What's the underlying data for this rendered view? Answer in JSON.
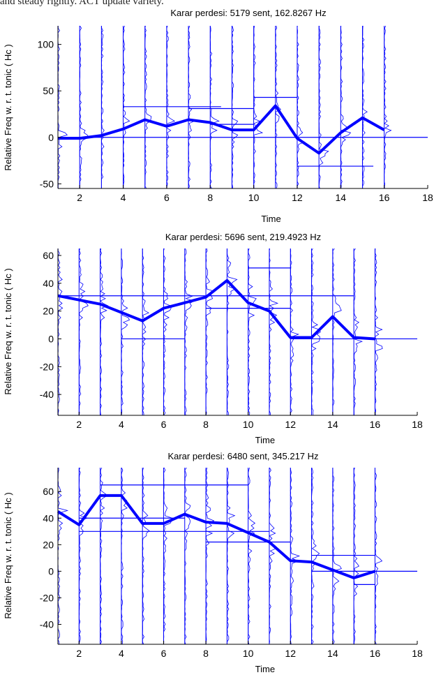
{
  "page": {
    "top_caption": "and steady rightly. ACT update variety."
  },
  "chart_data": [
    {
      "type": "line",
      "title": "Karar perdesi: 5179 sent, 162.8267 Hz",
      "xlabel": "Time",
      "ylabel": "Relative Freq w. r. t. tonic ( Hc )",
      "xlim": [
        1,
        18
      ],
      "ylim": [
        -55,
        120
      ],
      "xticks": [
        2,
        4,
        6,
        8,
        10,
        12,
        14,
        16,
        18
      ],
      "yticks": [
        -50,
        0,
        50,
        100
      ],
      "grid": false,
      "colors": {
        "line": "#0000ff",
        "axis": "#000000"
      },
      "frames": [
        1,
        2,
        3,
        4,
        5,
        6,
        7,
        8,
        9,
        10,
        11,
        12,
        13,
        14,
        15,
        16
      ],
      "series": [
        {
          "x": [
            1,
            2,
            3,
            4,
            5,
            6,
            7,
            8,
            9,
            10,
            11,
            12,
            13,
            14,
            15,
            16
          ],
          "values": [
            -1,
            -1,
            2,
            9,
            19,
            12,
            19,
            16,
            8,
            8,
            34,
            -1,
            -17,
            5,
            21,
            8
          ]
        }
      ],
      "peak_lines": [
        {
          "y": 0,
          "from": 1,
          "to": 18
        },
        {
          "y": 43,
          "from": 10,
          "to": 12
        },
        {
          "y": 31,
          "from": 7,
          "to": 10
        },
        {
          "y": 33,
          "from": 4,
          "to": 8.5
        },
        {
          "y": -31,
          "from": 12,
          "to": 15.5
        },
        {
          "y": 14,
          "from": 8,
          "to": 10
        }
      ]
    },
    {
      "type": "line",
      "title": "Karar perdesi: 5696 sent, 219.4923 Hz",
      "xlabel": "Time",
      "ylabel": "Relative Freq w. r. t. tonic ( Hc )",
      "xlim": [
        1,
        18
      ],
      "ylim": [
        -55,
        65
      ],
      "xticks": [
        2,
        4,
        6,
        8,
        10,
        12,
        14,
        16,
        18
      ],
      "yticks": [
        -40,
        -20,
        0,
        20,
        40,
        60
      ],
      "grid": false,
      "colors": {
        "line": "#0000ff",
        "axis": "#000000"
      },
      "frames": [
        1,
        2,
        3,
        4,
        5,
        6,
        7,
        8,
        9,
        10,
        11,
        12,
        13,
        14,
        15,
        16
      ],
      "series": [
        {
          "x": [
            1,
            2,
            3,
            4,
            5,
            6,
            7,
            8,
            9,
            10,
            11,
            12,
            13,
            14,
            15,
            16
          ],
          "values": [
            31,
            28,
            25,
            19,
            13,
            22,
            26,
            30,
            42,
            26,
            20,
            1,
            1,
            16,
            1,
            0
          ]
        }
      ],
      "peak_lines": [
        {
          "y": 0,
          "from": 12,
          "to": 18
        },
        {
          "y": 31,
          "from": 1,
          "to": 15
        },
        {
          "y": 0,
          "from": 4,
          "to": 7
        },
        {
          "y": 51,
          "from": 10,
          "to": 12
        },
        {
          "y": 22,
          "from": 8,
          "to": 12
        }
      ]
    },
    {
      "type": "line",
      "title": "Karar perdesi: 6480 sent, 345.217 Hz",
      "xlabel": "Time",
      "ylabel": "Relative Freq w. r. t. tonic ( Hc )",
      "xlim": [
        1,
        18
      ],
      "ylim": [
        -55,
        78
      ],
      "xticks": [
        2,
        4,
        6,
        8,
        10,
        12,
        14,
        16,
        18
      ],
      "yticks": [
        -40,
        -20,
        0,
        20,
        40,
        60
      ],
      "grid": false,
      "colors": {
        "line": "#0000ff",
        "axis": "#000000"
      },
      "frames": [
        1,
        2,
        3,
        4,
        5,
        6,
        7,
        8,
        9,
        10,
        11,
        12,
        13,
        14,
        15,
        16
      ],
      "series": [
        {
          "x": [
            1,
            2,
            3,
            4,
            5,
            6,
            7,
            8,
            9,
            10,
            11,
            12,
            13,
            14,
            15,
            16
          ],
          "values": [
            45,
            35,
            57,
            57,
            36,
            36,
            43,
            37,
            36,
            29,
            22,
            8,
            7,
            1,
            -5,
            0
          ]
        }
      ],
      "peak_lines": [
        {
          "y": 30,
          "from": 2,
          "to": 11
        },
        {
          "y": 22,
          "from": 8,
          "to": 12
        },
        {
          "y": 65,
          "from": 3,
          "to": 10
        },
        {
          "y": 40,
          "from": 2,
          "to": 7
        },
        {
          "y": 0,
          "from": 13,
          "to": 18
        },
        {
          "y": 12,
          "from": 13,
          "to": 16
        },
        {
          "y": -10,
          "from": 15,
          "to": 16
        }
      ]
    }
  ]
}
